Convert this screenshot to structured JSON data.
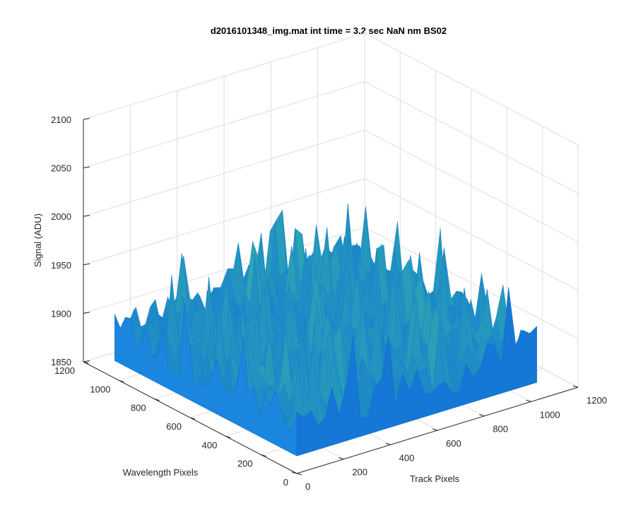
{
  "chart_data": {
    "type": "surface3d",
    "title": "d2016101348_img.mat int time = 3.2 sec  NaN nm BS02",
    "xlabel": "Track Pixels",
    "ylabel": "Wavelength Pixels",
    "zlabel": "Signal (ADU)",
    "xlim": [
      0,
      1200
    ],
    "ylim": [
      0,
      1200
    ],
    "zlim": [
      1850,
      2100
    ],
    "x_ticks": [
      "0",
      "200",
      "400",
      "600",
      "800",
      "1000",
      "1200"
    ],
    "y_ticks": [
      "0",
      "200",
      "400",
      "600",
      "800",
      "1000",
      "1200"
    ],
    "z_ticks": [
      "1850",
      "1900",
      "1950",
      "2000",
      "2050",
      "2100"
    ],
    "grid": true,
    "surface": {
      "x_range": [
        0,
        1024
      ],
      "y_range": [
        0,
        1024
      ],
      "mean": 1905,
      "noise_band": [
        1870,
        1975
      ],
      "peak_spikes": [
        1950,
        2000
      ],
      "colormap": "parula-low"
    }
  }
}
